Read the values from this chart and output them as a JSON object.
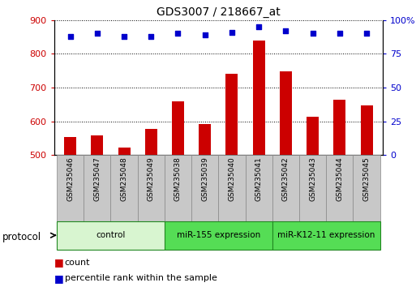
{
  "title": "GDS3007 / 218667_at",
  "samples": [
    "GSM235046",
    "GSM235047",
    "GSM235048",
    "GSM235049",
    "GSM235038",
    "GSM235039",
    "GSM235040",
    "GSM235041",
    "GSM235042",
    "GSM235043",
    "GSM235044",
    "GSM235045"
  ],
  "counts": [
    553,
    558,
    523,
    578,
    658,
    592,
    742,
    840,
    748,
    613,
    665,
    648
  ],
  "percentile_ranks": [
    88,
    90,
    88,
    88,
    90,
    89,
    91,
    95,
    92,
    90,
    90,
    90
  ],
  "groups": [
    {
      "label": "control",
      "start": 0,
      "end": 4,
      "color": "#d8f5d0"
    },
    {
      "label": "miR-155 expression",
      "start": 4,
      "end": 8,
      "color": "#55dd55"
    },
    {
      "label": "miR-K12-11 expression",
      "start": 8,
      "end": 12,
      "color": "#55dd55"
    }
  ],
  "ylim_left": [
    500,
    900
  ],
  "ylim_right": [
    0,
    100
  ],
  "yticks_left": [
    500,
    600,
    700,
    800,
    900
  ],
  "yticks_right": [
    0,
    25,
    50,
    75,
    100
  ],
  "bar_color": "#cc0000",
  "dot_color": "#0000cc",
  "bar_width": 0.45,
  "tick_label_color_left": "#cc0000",
  "tick_label_color_right": "#0000cc",
  "protocol_label": "protocol",
  "legend_count_label": "count",
  "legend_percentile_label": "percentile rank within the sample",
  "sample_box_color": "#c8c8c8",
  "sample_box_edge": "#888888"
}
